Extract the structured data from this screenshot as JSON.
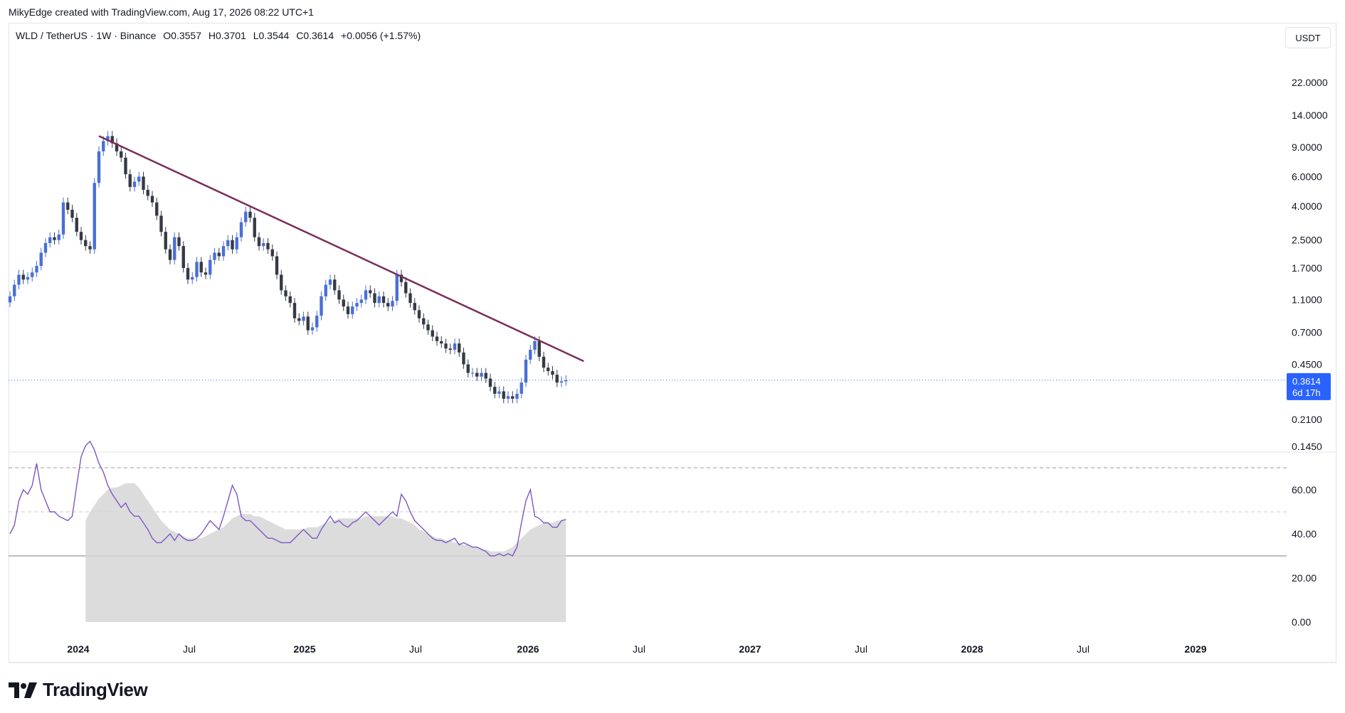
{
  "credit": "MikyEdge created with TradingView.com, Aug 17, 2026 08:22 UTC+1",
  "legend": {
    "symbol": "WLD / TetherUS · 1W · Binance",
    "open": "O0.3557",
    "high": "H0.3701",
    "low": "L0.3544",
    "close": "C0.3614",
    "change": "+0.0056 (+1.57%)"
  },
  "currency_button": "USDT",
  "price_label": {
    "price": "0.3614",
    "countdown": "6d 17h"
  },
  "logo_text": "TradingView",
  "colors": {
    "up": "#4a6fd6",
    "down": "#363a45",
    "trendline": "#7b2d5a",
    "rsi_line": "#7e57c2",
    "rsi_band": "#d6d6d6",
    "price_tag": "#2962ff"
  },
  "chart_data": [
    {
      "type": "candlestick",
      "scale": "log",
      "price_axis_ticks": [
        "22.0000",
        "14.0000",
        "9.0000",
        "6.0000",
        "4.0000",
        "2.5000",
        "1.7000",
        "1.1000",
        "0.7000",
        "0.4500",
        "0.2100",
        "0.1450"
      ],
      "price_axis_values": [
        22,
        14,
        9,
        6,
        4,
        2.5,
        1.7,
        1.1,
        0.7,
        0.45,
        0.21,
        0.145
      ],
      "time_axis_ticks": [
        {
          "label": "2024",
          "bold": true
        },
        {
          "label": "Jul",
          "bold": false
        },
        {
          "label": "2025",
          "bold": true
        },
        {
          "label": "Jul",
          "bold": false
        },
        {
          "label": "2026",
          "bold": true
        },
        {
          "label": "Jul",
          "bold": false
        },
        {
          "label": "2027",
          "bold": true
        },
        {
          "label": "Jul",
          "bold": false
        },
        {
          "label": "2028",
          "bold": true
        },
        {
          "label": "Jul",
          "bold": false
        },
        {
          "label": "2029",
          "bold": true
        }
      ],
      "close_series": [
        1.15,
        1.35,
        1.55,
        1.45,
        1.5,
        1.6,
        1.75,
        2.1,
        2.4,
        2.6,
        2.5,
        2.7,
        4.2,
        3.8,
        3.4,
        2.8,
        2.5,
        2.3,
        2.2,
        5.5,
        8.5,
        9.8,
        10.5,
        9.5,
        8.5,
        7.8,
        6.2,
        5.2,
        5.6,
        6.0,
        5.0,
        4.6,
        4.2,
        3.5,
        2.8,
        2.2,
        1.9,
        2.6,
        2.3,
        1.7,
        1.45,
        1.5,
        1.85,
        1.6,
        1.55,
        1.9,
        2.1,
        2.0,
        2.3,
        2.5,
        2.2,
        2.6,
        3.2,
        3.7,
        3.4,
        2.6,
        2.3,
        2.4,
        2.2,
        2.0,
        1.55,
        1.25,
        1.15,
        1.05,
        0.85,
        0.82,
        0.87,
        0.72,
        0.75,
        0.88,
        1.15,
        1.35,
        1.45,
        1.25,
        1.1,
        1.0,
        0.9,
        1.0,
        1.05,
        1.1,
        1.25,
        1.2,
        1.05,
        1.15,
        1.05,
        1.0,
        1.08,
        1.55,
        1.4,
        1.2,
        1.05,
        0.95,
        0.85,
        0.78,
        0.72,
        0.66,
        0.62,
        0.6,
        0.56,
        0.55,
        0.6,
        0.53,
        0.45,
        0.4,
        0.4,
        0.38,
        0.4,
        0.37,
        0.33,
        0.3,
        0.31,
        0.28,
        0.29,
        0.28,
        0.3,
        0.35,
        0.48,
        0.55,
        0.62,
        0.5,
        0.43,
        0.41,
        0.39,
        0.35,
        0.356,
        0.3614
      ],
      "trendline": {
        "start": {
          "x_index": 20,
          "price": 10.5
        },
        "end": {
          "x_index": 129,
          "price": 0.47
        }
      },
      "last_price": 0.3614
    },
    {
      "type": "line",
      "name": "RSI",
      "y_axis_ticks": [
        "60.00",
        "40.00",
        "20.00",
        "0.00"
      ],
      "y_axis_values": [
        60,
        40,
        20,
        0
      ],
      "levels": {
        "upper": 70,
        "middle": 50,
        "lower": 30
      },
      "rsi_values": [
        40,
        44,
        55,
        60,
        58,
        62,
        72,
        60,
        55,
        50,
        50,
        48,
        47,
        46,
        48,
        62,
        75,
        80,
        82,
        78,
        72,
        68,
        62,
        58,
        55,
        52,
        54,
        50,
        48,
        48,
        45,
        42,
        38,
        36,
        36,
        38,
        40,
        37,
        40,
        38,
        37,
        37,
        38,
        40,
        43,
        46,
        44,
        42,
        48,
        55,
        62,
        58,
        48,
        46,
        46,
        44,
        42,
        40,
        38,
        38,
        37,
        36,
        36,
        36,
        38,
        40,
        42,
        40,
        38,
        38,
        42,
        45,
        48,
        45,
        46,
        44,
        43,
        45,
        46,
        48,
        50,
        48,
        46,
        44,
        46,
        48,
        50,
        48,
        58,
        55,
        50,
        46,
        44,
        42,
        40,
        38,
        37,
        37,
        36,
        37,
        38,
        35,
        36,
        35,
        34,
        34,
        33,
        32,
        30,
        30,
        31,
        30,
        31,
        30,
        34,
        45,
        55,
        60,
        48,
        47,
        45,
        45,
        43,
        43,
        46,
        46.5
      ],
      "ma_values": [
        null,
        null,
        null,
        null,
        null,
        null,
        null,
        null,
        null,
        null,
        null,
        null,
        null,
        null,
        null,
        null,
        null,
        46,
        50,
        53,
        56,
        58,
        60,
        61,
        61,
        62,
        63,
        63,
        63,
        61,
        58,
        55,
        52,
        49,
        46,
        44,
        42,
        41,
        40,
        39,
        38,
        38,
        38,
        38,
        39,
        40,
        41,
        42,
        43,
        45,
        47,
        48,
        49,
        49,
        49,
        48,
        48,
        47,
        46,
        45,
        44,
        43,
        42,
        42,
        42,
        42,
        42,
        43,
        43,
        43,
        44,
        45,
        46,
        46,
        47,
        47,
        47,
        47,
        47,
        47,
        48,
        48,
        48,
        48,
        48,
        48,
        48,
        47,
        47,
        46,
        45,
        44,
        42,
        41,
        40,
        39,
        38,
        38,
        37,
        37,
        36,
        36,
        35,
        35,
        34,
        34,
        33,
        33,
        32,
        32,
        32,
        32,
        33,
        34,
        36,
        38,
        40,
        42,
        43,
        44,
        45,
        45,
        45,
        46,
        46,
        46
      ]
    }
  ]
}
